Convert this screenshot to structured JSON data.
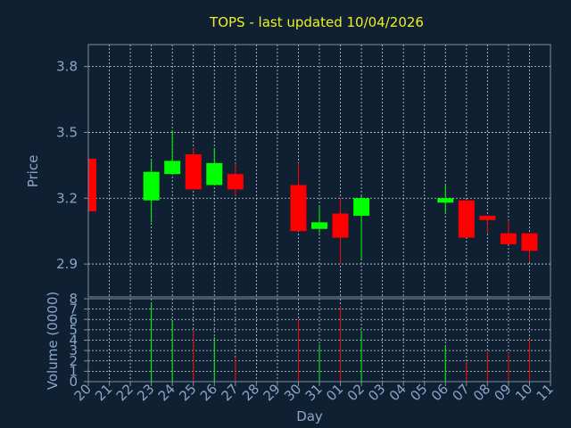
{
  "chart_data": {
    "type": "candlestick",
    "title": "TOPS - last updated 10/04/2026",
    "xlabel": "Day",
    "price_ylabel": "Price",
    "volume_ylabel": "Volume (0000)",
    "x_ticks": [
      "20",
      "21",
      "22",
      "23",
      "24",
      "25",
      "26",
      "27",
      "28",
      "29",
      "30",
      "31",
      "01",
      "02",
      "03",
      "04",
      "05",
      "06",
      "07",
      "08",
      "09",
      "10",
      "11"
    ],
    "price_ticks": [
      "2.9",
      "3.2",
      "3.5",
      "3.8"
    ],
    "price_ylim": [
      2.75,
      3.9
    ],
    "volume_ticks": [
      "0",
      "1",
      "2",
      "3",
      "4",
      "5",
      "6",
      "7",
      "8"
    ],
    "volume_ylim": [
      0,
      8
    ],
    "up_color": "#00ff00",
    "down_color": "#ff0000",
    "candles": [
      {
        "day": "20",
        "open": 3.38,
        "close": 3.14,
        "high": 3.38,
        "low": 3.14,
        "volume": null
      },
      {
        "day": "23",
        "open": 3.19,
        "close": 3.32,
        "high": 3.37,
        "low": 3.09,
        "volume": 7.6
      },
      {
        "day": "24",
        "open": 3.31,
        "close": 3.37,
        "high": 3.51,
        "low": 3.31,
        "volume": 5.9
      },
      {
        "day": "25",
        "open": 3.4,
        "close": 3.24,
        "high": 3.43,
        "low": 3.24,
        "volume": 4.9
      },
      {
        "day": "26",
        "open": 3.26,
        "close": 3.36,
        "high": 3.43,
        "low": 3.26,
        "volume": 4.3
      },
      {
        "day": "27",
        "open": 3.31,
        "close": 3.24,
        "high": 3.36,
        "low": 3.21,
        "volume": 2.3
      },
      {
        "day": "30",
        "open": 3.26,
        "close": 3.05,
        "high": 3.36,
        "low": 3.05,
        "volume": 6.0
      },
      {
        "day": "31",
        "open": 3.06,
        "close": 3.09,
        "high": 3.16,
        "low": 3.04,
        "volume": 3.6
      },
      {
        "day": "01",
        "open": 3.13,
        "close": 3.02,
        "high": 3.2,
        "low": 2.9,
        "volume": 7.3
      },
      {
        "day": "02",
        "open": 3.12,
        "close": 3.2,
        "high": 3.21,
        "low": 2.92,
        "volume": 4.9
      },
      {
        "day": "06",
        "open": 3.18,
        "close": 3.2,
        "high": 3.26,
        "low": 3.13,
        "volume": 3.4
      },
      {
        "day": "07",
        "open": 3.19,
        "close": 3.02,
        "high": 3.19,
        "low": 3.02,
        "volume": 1.9
      },
      {
        "day": "08",
        "open": 3.12,
        "close": 3.1,
        "high": 3.12,
        "low": 3.04,
        "volume": 2.9
      },
      {
        "day": "09",
        "open": 3.04,
        "close": 2.99,
        "high": 3.1,
        "low": 2.99,
        "volume": 2.8
      },
      {
        "day": "10",
        "open": 3.04,
        "close": 2.96,
        "high": 3.04,
        "low": 2.91,
        "volume": 4.1
      }
    ]
  }
}
